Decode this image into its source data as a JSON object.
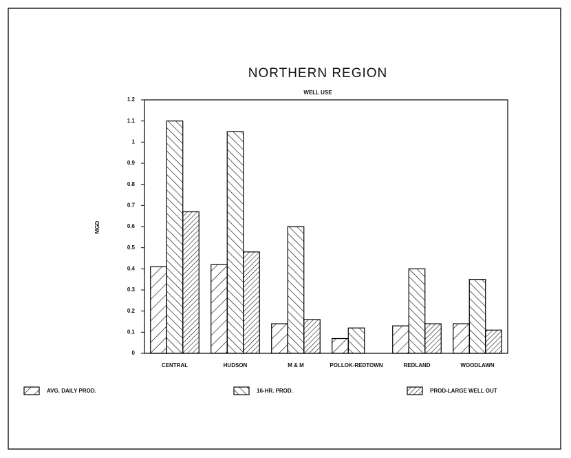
{
  "chart_data": {
    "type": "bar",
    "title": "NORTHERN REGION",
    "subtitle": "WELL USE",
    "y_label": "MGD",
    "categories": [
      "CENTRAL",
      "HUDSON",
      "M & M",
      "POLLOK-REDTOWN",
      "REDLAND",
      "WOODLAWN"
    ],
    "series": [
      {
        "name": "AVG. DAILY PROD.",
        "color": "#000000",
        "values": [
          0.41,
          0.42,
          0.14,
          0.07,
          0.13,
          0.14
        ]
      },
      {
        "name": "16-HR. PROD.",
        "color": "#000000",
        "values": [
          1.1,
          1.05,
          0.6,
          0.12,
          0.4,
          0.35
        ]
      },
      {
        "name": "PROD-LARGE WELL OUT",
        "color": "#000000",
        "values": [
          0.67,
          0.48,
          0.16,
          0,
          0.14,
          0.11
        ]
      }
    ],
    "ylim": [
      0,
      1.2
    ],
    "yticks": [
      0,
      0.1,
      0.2,
      0.3,
      0.4,
      0.5,
      0.6,
      0.7,
      0.8,
      0.9,
      1,
      1.1,
      1.2
    ],
    "grid": false
  }
}
